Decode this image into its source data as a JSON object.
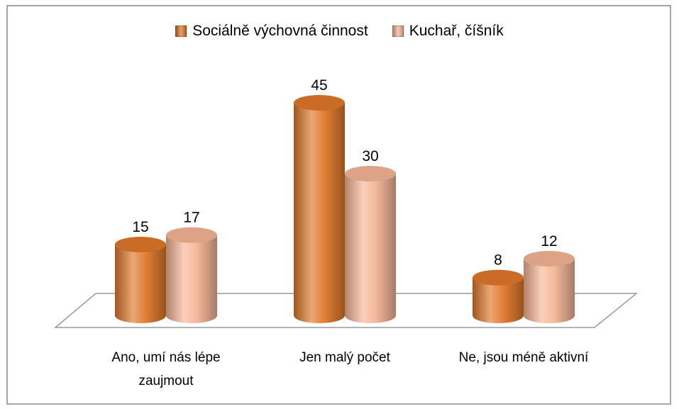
{
  "chart_data": {
    "type": "bar3d",
    "categories": [
      "Ano, umí nás lépe zaujmout",
      "Jen malý počet",
      "Ne, jsou méně aktivní"
    ],
    "series": [
      {
        "name": "Sociálně výchovná činnost",
        "color": "#e0782a",
        "values": [
          15,
          45,
          8
        ]
      },
      {
        "name": "Kuchař, číšník",
        "color": "#f6b596",
        "values": [
          17,
          30,
          12
        ]
      }
    ],
    "legend": "top"
  }
}
